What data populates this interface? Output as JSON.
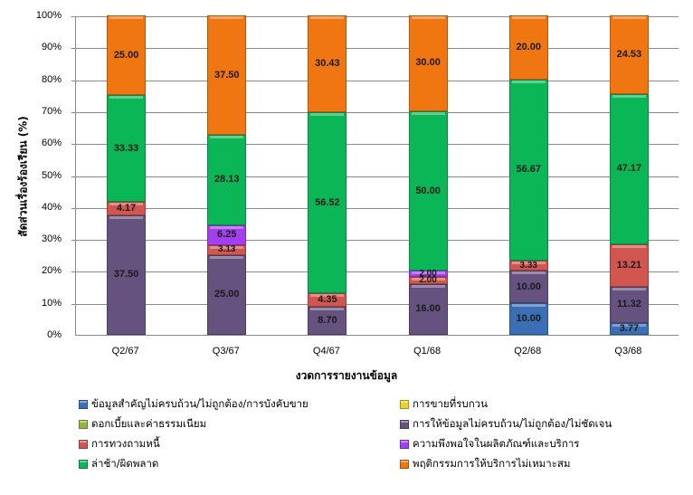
{
  "chart_data": {
    "type": "bar",
    "stacked": true,
    "percent_stacked": true,
    "title": "",
    "xlabel": "งวดการรายงานข้อมูล",
    "ylabel": "สัดส่วนเรื่องร้องเรียน (%)",
    "ylim": [
      0,
      100
    ],
    "yticks": [
      "0%",
      "10%",
      "20%",
      "30%",
      "40%",
      "50%",
      "60%",
      "70%",
      "80%",
      "90%",
      "100%"
    ],
    "grid": true,
    "legend_position": "bottom",
    "categories": [
      "Q2/67",
      "Q3/67",
      "Q4/67",
      "Q1/68",
      "Q2/68",
      "Q3/68"
    ],
    "series": [
      {
        "name": "ข้อมูลสำคัญไม่ครบถ้วน/ไม่ถูกต้อง/การบังคับขาย",
        "color": "#3a6fb5",
        "values": [
          0,
          0,
          0,
          0,
          10.0,
          3.77
        ]
      },
      {
        "name": "การขายที่รบกวน",
        "color": "#e6d42a",
        "values": [
          0,
          0,
          0,
          0,
          0,
          0
        ]
      },
      {
        "name": "ดอกเบี้ยและค่าธรรมเนียม",
        "color": "#8fb83a",
        "values": [
          0,
          0,
          0,
          0,
          0,
          0
        ]
      },
      {
        "name": "การให้ข้อมูลไม่ครบถ้วน/ไม่ถูกต้อง/ไม่ชัดเจน",
        "color": "#65527f",
        "values": [
          37.5,
          25.0,
          8.7,
          16.0,
          10.0,
          11.32
        ]
      },
      {
        "name": "การทวงถามหนี้",
        "color": "#d0564f",
        "values": [
          4.17,
          3.13,
          4.35,
          2.0,
          3.33,
          13.21
        ]
      },
      {
        "name": "ความพึงพอใจในผลิตภัณฑ์และบริการ",
        "color": "#a43ff0",
        "values": [
          0,
          6.25,
          0,
          2.0,
          0,
          0
        ]
      },
      {
        "name": "ล่าช้า/ผิดพลาด",
        "color": "#0bb656",
        "values": [
          33.33,
          28.13,
          56.52,
          50.0,
          56.67,
          47.17
        ]
      },
      {
        "name": "พฤติกรรมการให้บริการไม่เหมาะสม",
        "color": "#f07612",
        "values": [
          25.0,
          37.5,
          30.43,
          30.0,
          20.0,
          24.53
        ]
      }
    ]
  },
  "legend": [
    {
      "label": "ข้อมูลสำคัญไม่ครบถ้วน/ไม่ถูกต้อง/การบังคับขาย",
      "color": "#3a6fb5"
    },
    {
      "label": "การขายที่รบกวน",
      "color": "#e6d42a"
    },
    {
      "label": "ดอกเบี้ยและค่าธรรมเนียม",
      "color": "#8fb83a"
    },
    {
      "label": "การให้ข้อมูลไม่ครบถ้วน/ไม่ถูกต้อง/ไม่ชัดเจน",
      "color": "#65527f"
    },
    {
      "label": "การทวงถามหนี้",
      "color": "#d0564f"
    },
    {
      "label": "ความพึงพอใจในผลิตภัณฑ์และบริการ",
      "color": "#a43ff0"
    },
    {
      "label": "ล่าช้า/ผิดพลาด",
      "color": "#0bb656"
    },
    {
      "label": "พฤติกรรมการให้บริการไม่เหมาะสม",
      "color": "#f07612"
    }
  ]
}
